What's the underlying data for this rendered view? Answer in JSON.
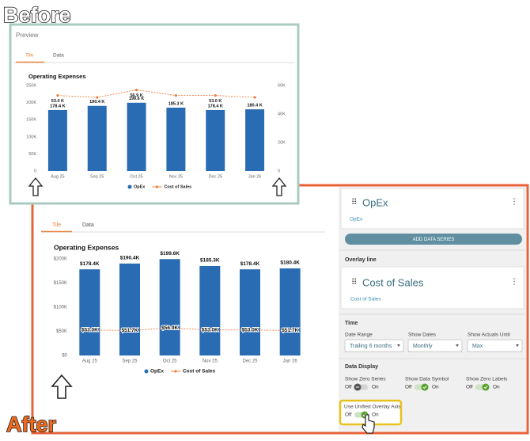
{
  "before_label": "Before",
  "after_label": "After",
  "before_panel": {
    "header": "Preview",
    "tabs": [
      "Tile",
      "Data"
    ],
    "active_tab": 0
  },
  "after_panel": {
    "tabs": [
      "Tile",
      "Data"
    ],
    "active_tab": 0
  },
  "chart_data": [
    {
      "type": "combo",
      "title": "Operating Expenses",
      "categories": [
        "Aug 25",
        "Sep 25",
        "Oct 25",
        "Nov 25",
        "Dec 25",
        "Jan 26"
      ],
      "series": [
        {
          "name": "OpEx",
          "type": "bar",
          "color": "#2a6cb3",
          "values": [
            178400,
            190400,
            199600,
            185300,
            178400,
            180400
          ],
          "value_labels": [
            "178.4 K",
            "190.4 K",
            "199.6 K",
            "185.3 K",
            "178.4 K",
            "180.4 K"
          ]
        },
        {
          "name": "Cost of Sales",
          "type": "line",
          "axis": "y2",
          "color": "#f07f3c",
          "values": [
            53000,
            51700,
            56900,
            53000,
            53000,
            51700
          ],
          "value_labels": [
            "53.0 K",
            null,
            "56.9 K",
            null,
            "53.0 K",
            null
          ]
        }
      ],
      "ylim": [
        0,
        250000
      ],
      "yticks": [
        0,
        {
          "value": 50000,
          "label": "50K"
        },
        {
          "value": 100000,
          "label": "100K"
        },
        {
          "value": 150000,
          "label": "150K"
        },
        {
          "value": 200000,
          "label": "200K"
        },
        {
          "value": 250000,
          "label": "250K"
        }
      ],
      "y2lim": [
        0,
        60000
      ],
      "y2ticks": [
        0,
        {
          "value": 20000,
          "label": "20K"
        },
        {
          "value": 40000,
          "label": "40K"
        },
        {
          "value": 60000,
          "label": "60K"
        }
      ],
      "grid": false
    },
    {
      "type": "combo",
      "title": "Operating Expenses",
      "categories": [
        "Aug 25",
        "Sep 25",
        "Oct 25",
        "Nov 25",
        "Dec 25",
        "Jan 26"
      ],
      "series": [
        {
          "name": "OpEx",
          "type": "bar",
          "color": "#2a6cb3",
          "values": [
            178400,
            190400,
            199600,
            185300,
            178400,
            180400
          ],
          "value_labels": [
            "$178.4K",
            "$190.4K",
            "$199.6K",
            "$185.3K",
            "$178.4K",
            "$180.4K"
          ]
        },
        {
          "name": "Cost of Sales",
          "type": "line",
          "color": "#f07f3c",
          "values": [
            53000,
            51700,
            56900,
            53000,
            53000,
            51700
          ],
          "value_labels": [
            "$53.0K",
            "$51.7K",
            "$56.9K",
            "$53.0K",
            "$53.0K",
            "$51.7K"
          ]
        }
      ],
      "ylim": [
        0,
        200000
      ],
      "yticks": [
        {
          "value": 0,
          "label": "$0"
        },
        {
          "value": 50000,
          "label": "$50K"
        },
        {
          "value": 100000,
          "label": "$100K"
        },
        {
          "value": 150000,
          "label": "$150K"
        },
        {
          "value": 200000,
          "label": "$200K"
        }
      ],
      "grid": false
    }
  ],
  "settings": {
    "series_card": {
      "name": "OpEx",
      "link": "OpEx"
    },
    "add_button": "ADD DATA SERIES",
    "overlay_heading": "Overlay line",
    "overlay_card": {
      "name": "Cost of Sales",
      "link": "Cost of Sales"
    },
    "time": {
      "heading": "Time",
      "fields": [
        {
          "label": "Date Range",
          "value": "Trailing 6 months"
        },
        {
          "label": "Show Dates",
          "value": "Monthly"
        },
        {
          "label": "Show Actuals Until",
          "value": "Max"
        }
      ]
    },
    "data_display": {
      "heading": "Data Display",
      "toggles": [
        {
          "label": "Show Zero Series",
          "off": "Off",
          "on": "On",
          "state": false
        },
        {
          "label": "Show Data Symbol",
          "off": "Off",
          "on": "On",
          "state": true
        },
        {
          "label": "Show Zero Labels",
          "off": "Off",
          "on": "On",
          "state": true
        }
      ]
    },
    "unified_axis": {
      "label": "Use Unified Overlay Axis",
      "off": "Off",
      "on": "On",
      "state": true
    }
  }
}
